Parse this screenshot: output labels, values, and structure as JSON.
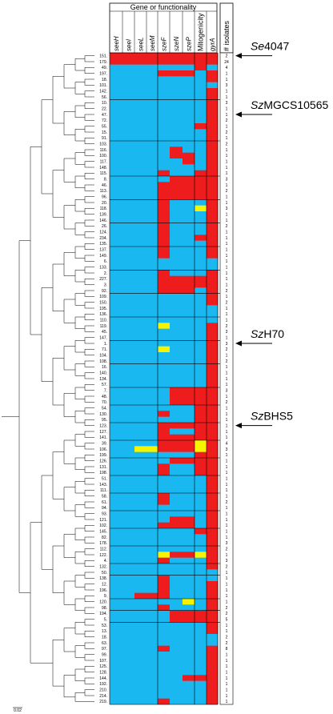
{
  "title": "Gene or functionality",
  "columns": [
    {
      "label": "seeH",
      "italic": true
    },
    {
      "label": "seeI",
      "italic": true
    },
    {
      "label": "seeL",
      "italic": true
    },
    {
      "label": "seeM",
      "italic": true
    },
    {
      "label": "szeF",
      "italic": true
    },
    {
      "label": "szeN",
      "italic": true
    },
    {
      "label": "szeP",
      "italic": true
    },
    {
      "label": "Mitogenicity",
      "italic": false
    },
    {
      "label": "gyrA",
      "italic": true
    }
  ],
  "isolates_header": "# isolates",
  "colors": {
    "present": "#ee1c1c",
    "absent": "#1ab8f0",
    "intermediate": "#f5f500",
    "line": "#000000"
  },
  "rows": [
    {
      "id": "151",
      "count": "2"
    },
    {
      "id": "179",
      "count": "24"
    },
    {
      "id": "49",
      "count": "4"
    },
    {
      "id": "197",
      "count": "1"
    },
    {
      "id": "18",
      "count": "1"
    },
    {
      "id": "101",
      "count": "3"
    },
    {
      "id": "142",
      "count": "1"
    },
    {
      "id": "56",
      "count": "1"
    },
    {
      "id": "10",
      "count": "3"
    },
    {
      "id": "22",
      "count": "1"
    },
    {
      "id": "47",
      "count": "1"
    },
    {
      "id": "72",
      "count": "2"
    },
    {
      "id": "55",
      "count": "1"
    },
    {
      "id": "15",
      "count": "2"
    },
    {
      "id": "91",
      "count": "1"
    },
    {
      "id": "103",
      "count": "2"
    },
    {
      "id": "116",
      "count": "1"
    },
    {
      "id": "100",
      "count": "1"
    },
    {
      "id": "117",
      "count": "1"
    },
    {
      "id": "148",
      "count": "1"
    },
    {
      "id": "115",
      "count": "1"
    },
    {
      "id": "8",
      "count": "3"
    },
    {
      "id": "46",
      "count": "1"
    },
    {
      "id": "113",
      "count": "2"
    },
    {
      "id": "96",
      "count": "1"
    },
    {
      "id": "20",
      "count": "1"
    },
    {
      "id": "118",
      "count": "3"
    },
    {
      "id": "139",
      "count": "1"
    },
    {
      "id": "146",
      "count": "1"
    },
    {
      "id": "26",
      "count": "2"
    },
    {
      "id": "124",
      "count": "1"
    },
    {
      "id": "234",
      "count": "1"
    },
    {
      "id": "135",
      "count": "1"
    },
    {
      "id": "137",
      "count": "1"
    },
    {
      "id": "149",
      "count": "1"
    },
    {
      "id": "6",
      "count": "1"
    },
    {
      "id": "133",
      "count": "1"
    },
    {
      "id": "2",
      "count": "1"
    },
    {
      "id": "227",
      "count": "1"
    },
    {
      "id": "3",
      "count": "1"
    },
    {
      "id": "92",
      "count": "2"
    },
    {
      "id": "109",
      "count": "1"
    },
    {
      "id": "150",
      "count": "2"
    },
    {
      "id": "195",
      "count": "1"
    },
    {
      "id": "136",
      "count": "1"
    },
    {
      "id": "110",
      "count": "1"
    },
    {
      "id": "119",
      "count": "2"
    },
    {
      "id": "45",
      "count": "3"
    },
    {
      "id": "147",
      "count": "1"
    },
    {
      "id": "1",
      "count": "3"
    },
    {
      "id": "71",
      "count": "2"
    },
    {
      "id": "104",
      "count": "1"
    },
    {
      "id": "108",
      "count": "2"
    },
    {
      "id": "16",
      "count": "1"
    },
    {
      "id": "140",
      "count": "1"
    },
    {
      "id": "134",
      "count": "1"
    },
    {
      "id": "57",
      "count": "1"
    },
    {
      "id": "7",
      "count": "3"
    },
    {
      "id": "48",
      "count": "1"
    },
    {
      "id": "70",
      "count": "2"
    },
    {
      "id": "54",
      "count": "1"
    },
    {
      "id": "130",
      "count": "1"
    },
    {
      "id": "95",
      "count": "1"
    },
    {
      "id": "123",
      "count": "1"
    },
    {
      "id": "127",
      "count": "1"
    },
    {
      "id": "141",
      "count": "1"
    },
    {
      "id": "39",
      "count": "4"
    },
    {
      "id": "106",
      "count": "3"
    },
    {
      "id": "199",
      "count": "1"
    },
    {
      "id": "126",
      "count": "1"
    },
    {
      "id": "131",
      "count": "1"
    },
    {
      "id": "198",
      "count": "1"
    },
    {
      "id": "51",
      "count": "1"
    },
    {
      "id": "143",
      "count": "1"
    },
    {
      "id": "111",
      "count": "1"
    },
    {
      "id": "58",
      "count": "1"
    },
    {
      "id": "61",
      "count": "2"
    },
    {
      "id": "94",
      "count": "1"
    },
    {
      "id": "93",
      "count": "1"
    },
    {
      "id": "121",
      "count": "1"
    },
    {
      "id": "102",
      "count": "1"
    },
    {
      "id": "145",
      "count": "1"
    },
    {
      "id": "82",
      "count": "1"
    },
    {
      "id": "178",
      "count": "3"
    },
    {
      "id": "112",
      "count": "2"
    },
    {
      "id": "122",
      "count": "1"
    },
    {
      "id": "4",
      "count": "3"
    },
    {
      "id": "132",
      "count": "2"
    },
    {
      "id": "50",
      "count": "1"
    },
    {
      "id": "138",
      "count": "1"
    },
    {
      "id": "12",
      "count": "1"
    },
    {
      "id": "196",
      "count": "1"
    },
    {
      "id": "9",
      "count": "1"
    },
    {
      "id": "120",
      "count": "1"
    },
    {
      "id": "98",
      "count": "2"
    },
    {
      "id": "194",
      "count": "2"
    },
    {
      "id": "5",
      "count": "5"
    },
    {
      "id": "53",
      "count": "1"
    },
    {
      "id": "13",
      "count": "1"
    },
    {
      "id": "18",
      "count": "2"
    },
    {
      "id": "63",
      "count": "2"
    },
    {
      "id": "97",
      "count": "8"
    },
    {
      "id": "99",
      "count": "1"
    },
    {
      "id": "107",
      "count": "1"
    },
    {
      "id": "125",
      "count": "1"
    },
    {
      "id": "128",
      "count": "1"
    },
    {
      "id": "144",
      "count": "1"
    },
    {
      "id": "192",
      "count": "1"
    },
    {
      "id": "210",
      "count": "1"
    },
    {
      "id": "214",
      "count": "1"
    },
    {
      "id": "219",
      "count": "1"
    }
  ],
  "cell_overrides": [
    {
      "from": 0,
      "to": 1,
      "col": [
        0,
        1,
        2,
        3,
        4,
        5,
        6,
        7
      ],
      "state": "P"
    },
    {
      "from": 3,
      "to": 3,
      "col": [
        4
      ],
      "state": "P"
    },
    {
      "from": 3,
      "to": 3,
      "col": [
        5,
        6
      ],
      "state": "P"
    },
    {
      "from": 2,
      "to": 2,
      "col": [
        7
      ],
      "state": "P"
    },
    {
      "from": 12,
      "to": 12,
      "col": [
        7
      ],
      "state": "P"
    },
    {
      "from": 16,
      "to": 17,
      "col": [
        5
      ],
      "state": "P"
    },
    {
      "from": 17,
      "to": 18,
      "col": [
        6
      ],
      "state": "P"
    },
    {
      "from": 20,
      "to": 20,
      "col": [
        4
      ],
      "state": "P"
    },
    {
      "from": 20,
      "to": 20,
      "col": [
        7
      ],
      "state": "P"
    },
    {
      "from": 21,
      "to": 24,
      "col": [
        5,
        6,
        7
      ],
      "state": "P"
    },
    {
      "from": 22,
      "to": 24,
      "col": [
        4
      ],
      "state": "P"
    },
    {
      "from": 25,
      "to": 28,
      "col": [
        4
      ],
      "state": "P"
    },
    {
      "from": 26,
      "to": 26,
      "col": [
        7
      ],
      "state": "I"
    },
    {
      "from": 29,
      "to": 32,
      "col": [
        4
      ],
      "state": "P"
    },
    {
      "from": 31,
      "to": 31,
      "col": [
        7
      ],
      "state": "P"
    },
    {
      "from": 33,
      "to": 34,
      "col": [
        4
      ],
      "state": "P"
    },
    {
      "from": 37,
      "to": 40,
      "col": [
        4
      ],
      "state": "P"
    },
    {
      "from": 38,
      "to": 40,
      "col": [
        5,
        6,
        7
      ],
      "state": "P"
    },
    {
      "from": 40,
      "to": 40,
      "col": [
        7
      ],
      "state": "A"
    },
    {
      "from": 46,
      "to": 46,
      "col": [
        4
      ],
      "state": "I"
    },
    {
      "from": 50,
      "to": 50,
      "col": [
        4
      ],
      "state": "I"
    },
    {
      "from": 57,
      "to": 59,
      "col": [
        5,
        6,
        7
      ],
      "state": "P"
    },
    {
      "from": 61,
      "to": 61,
      "col": [
        4
      ],
      "state": "P"
    },
    {
      "from": 60,
      "to": 62,
      "col": [
        7
      ],
      "state": "P"
    },
    {
      "from": 63,
      "to": 65,
      "col": [
        4,
        5,
        6,
        7
      ],
      "state": "P"
    },
    {
      "from": 64,
      "to": 64,
      "col": [
        5,
        6
      ],
      "state": "A"
    },
    {
      "from": 66,
      "to": 67,
      "col": [
        4,
        5,
        6
      ],
      "state": "P"
    },
    {
      "from": 67,
      "to": 67,
      "col": [
        2,
        3
      ],
      "state": "I"
    },
    {
      "from": 66,
      "to": 67,
      "col": [
        7
      ],
      "state": "I"
    },
    {
      "from": 68,
      "to": 68,
      "col": [
        7
      ],
      "state": "P"
    },
    {
      "from": 69,
      "to": 69,
      "col": [
        5,
        6,
        7
      ],
      "state": "P"
    },
    {
      "from": 70,
      "to": 71,
      "col": [
        4
      ],
      "state": "P"
    },
    {
      "from": 70,
      "to": 71,
      "col": [
        7
      ],
      "state": "P"
    },
    {
      "from": 75,
      "to": 76,
      "col": [
        4
      ],
      "state": "P"
    },
    {
      "from": 79,
      "to": 80,
      "col": [
        5,
        6
      ],
      "state": "P"
    },
    {
      "from": 80,
      "to": 80,
      "col": [
        4
      ],
      "state": "P"
    },
    {
      "from": 81,
      "to": 81,
      "col": [
        7
      ],
      "state": "P"
    },
    {
      "from": 85,
      "to": 85,
      "col": [
        4
      ],
      "state": "I"
    },
    {
      "from": 85,
      "to": 85,
      "col": [
        5,
        6
      ],
      "state": "P"
    },
    {
      "from": 85,
      "to": 85,
      "col": [
        7
      ],
      "state": "I"
    },
    {
      "from": 86,
      "to": 86,
      "col": [
        4
      ],
      "state": "P"
    },
    {
      "from": 89,
      "to": 92,
      "col": [
        4
      ],
      "state": "P"
    },
    {
      "from": 92,
      "to": 92,
      "col": [
        2,
        3
      ],
      "state": "P"
    },
    {
      "from": 93,
      "to": 93,
      "col": [
        6
      ],
      "state": "I"
    },
    {
      "from": 94,
      "to": 94,
      "col": [
        4
      ],
      "state": "P"
    },
    {
      "from": 95,
      "to": 96,
      "col": [
        5,
        6,
        7
      ],
      "state": "P"
    },
    {
      "from": 101,
      "to": 101,
      "col": [
        4
      ],
      "state": "P"
    },
    {
      "from": 106,
      "to": 106,
      "col": [
        6,
        7
      ],
      "state": "P"
    },
    {
      "from": 110,
      "to": 110,
      "col": [
        4
      ],
      "state": "P"
    }
  ],
  "gyrA_blue_rows": [
    2,
    5,
    35,
    36,
    43,
    44,
    45,
    88,
    89,
    99,
    100
  ],
  "separators_after_rows": [
    7,
    14,
    20,
    24,
    28,
    32,
    36,
    40,
    44,
    48,
    52,
    56,
    59,
    62,
    65,
    68,
    71,
    74,
    77,
    80,
    83,
    86,
    88,
    92,
    94,
    96
  ],
  "callouts": [
    {
      "prefix": "Se",
      "suffix": "4047",
      "row": 0
    },
    {
      "prefix": "Sz",
      "suffix": "MGCS10565",
      "row": 10
    },
    {
      "prefix": "Sz",
      "suffix": "H70",
      "row": 49
    },
    {
      "prefix": "Sz",
      "suffix": "BHS5",
      "row": 63
    }
  ],
  "scale_label": "0.02"
}
